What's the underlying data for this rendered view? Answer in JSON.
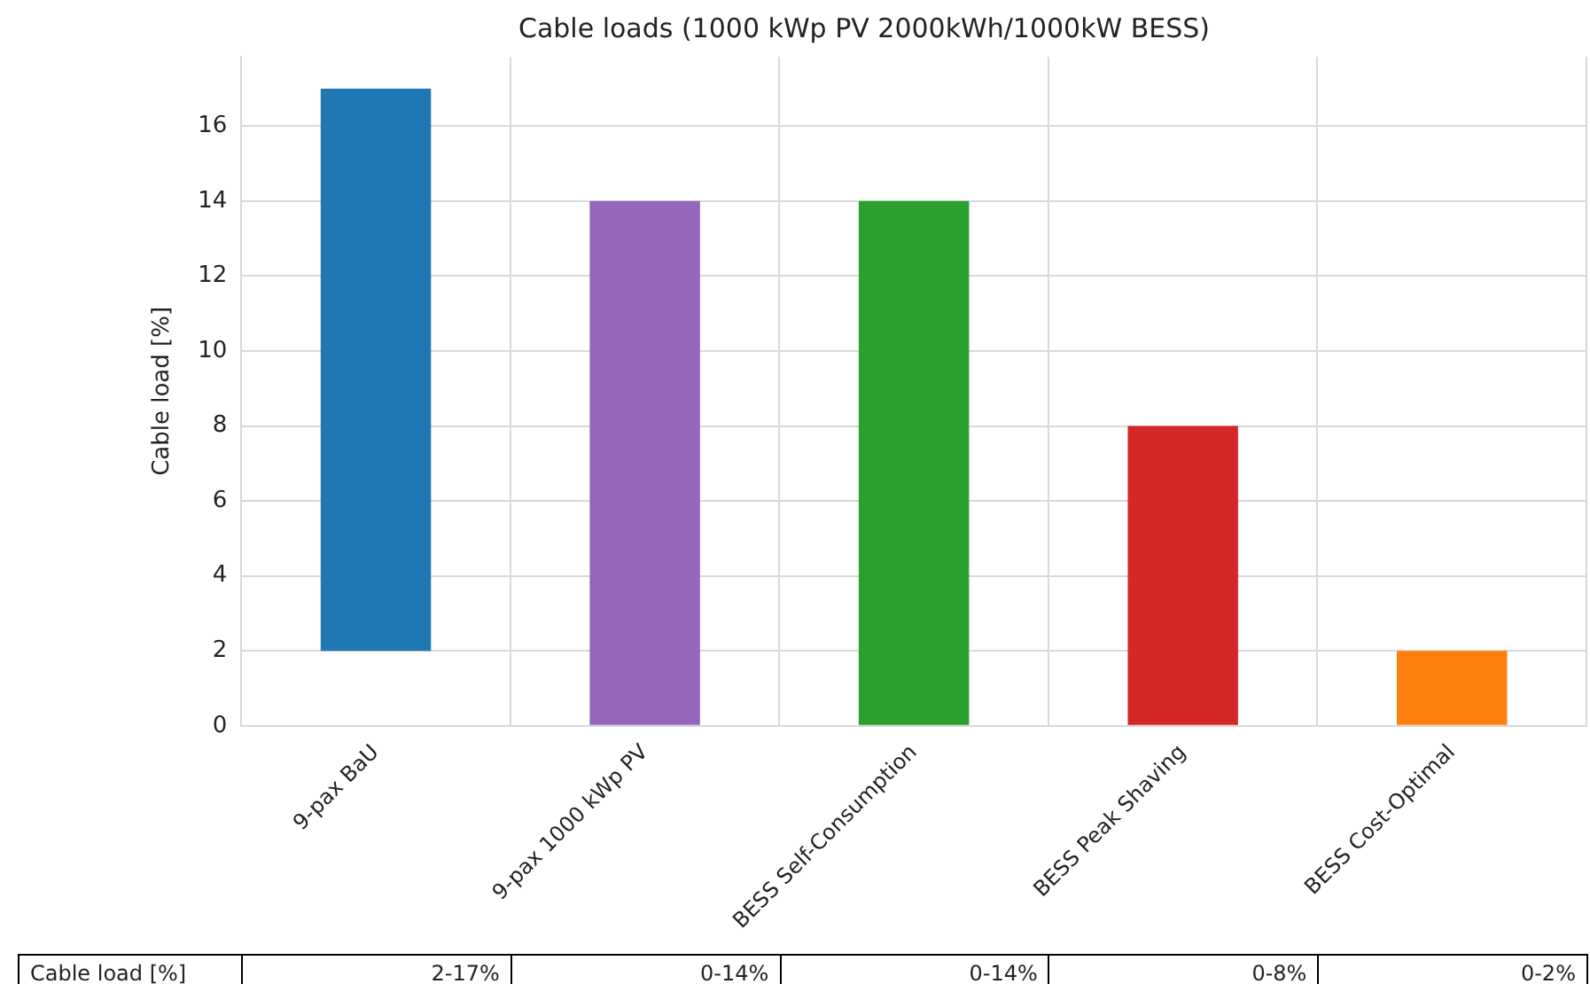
{
  "chart_data": {
    "type": "bar",
    "title": "Cable loads (1000 kWp PV 2000kWh/1000kW BESS)",
    "ylabel": "Cable load [%]",
    "categories": [
      "9-pax BaU",
      "9-pax 1000 kWp PV",
      "BESS Self-Consumption",
      "BESS Peak Shaving",
      "BESS Cost-Optimal"
    ],
    "values": [
      15,
      14,
      14,
      8,
      2
    ],
    "base": [
      2,
      0,
      0,
      0,
      0
    ],
    "colors": [
      "#1f77b4",
      "#9467bd",
      "#2ca02c",
      "#d62728",
      "#ff7f0e"
    ],
    "annotations": [
      "Cable load [%]",
      "2-17%",
      "0-14%",
      "0-14%",
      "0-8%",
      "0-2%"
    ],
    "ylim": [
      0,
      17.85
    ],
    "yticks": [
      0,
      2,
      4,
      6,
      8,
      10,
      12,
      14,
      16
    ],
    "grid": true
  }
}
